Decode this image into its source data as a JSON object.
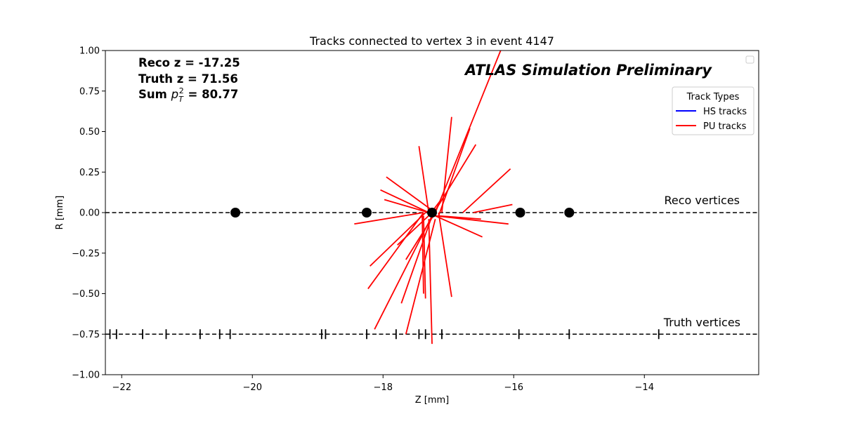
{
  "chart_data": {
    "type": "scatter",
    "title": "Tracks connected to vertex 3 in event 4147",
    "xlabel": "Z [mm]",
    "ylabel": "R [mm]",
    "xlim": [
      -22.25,
      -12.25
    ],
    "ylim": [
      -1.0,
      1.0
    ],
    "xticks": [
      -22,
      -20,
      -18,
      -16,
      -14
    ],
    "xtick_labels": [
      "−22",
      "−20",
      "−18",
      "−16",
      "−14"
    ],
    "yticks": [
      1.0,
      0.75,
      0.5,
      0.25,
      0.0,
      -0.25,
      -0.5,
      -0.75,
      -1.0
    ],
    "ytick_labels": [
      "1.00",
      "0.75",
      "0.50",
      "0.25",
      "0.00",
      "−0.25",
      "−0.50",
      "−0.75",
      "−1.00"
    ],
    "grid": false,
    "info": {
      "reco_z_label": "Reco z = -17.25",
      "truth_z_label": "Truth z = 71.56",
      "sum_pt_prefix": "Sum ",
      "sum_pt_p": "p",
      "sum_pt_sub": "T",
      "sum_pt_sup": "2",
      "sum_pt_suffix": " = 80.77"
    },
    "watermark": "ATLAS Simulation Preliminary",
    "reference_lines": [
      {
        "label": "Reco vertices",
        "r": 0.0,
        "color": "#000000"
      },
      {
        "label": "Truth vertices",
        "r": -0.75,
        "color": "#000000"
      }
    ],
    "reco_vertices": [
      {
        "z": -20.26,
        "r": 0.0
      },
      {
        "z": -18.25,
        "r": 0.0
      },
      {
        "z": -17.25,
        "r": 0.0
      },
      {
        "z": -15.9,
        "r": 0.0
      },
      {
        "z": -15.15,
        "r": 0.0
      }
    ],
    "truth_vertices": [
      {
        "z": -22.18,
        "r": -0.75
      },
      {
        "z": -22.08,
        "r": -0.75
      },
      {
        "z": -21.68,
        "r": -0.75
      },
      {
        "z": -21.32,
        "r": -0.75
      },
      {
        "z": -20.8,
        "r": -0.75
      },
      {
        "z": -20.5,
        "r": -0.75
      },
      {
        "z": -20.34,
        "r": -0.75
      },
      {
        "z": -18.94,
        "r": -0.75
      },
      {
        "z": -18.88,
        "r": -0.75
      },
      {
        "z": -18.25,
        "r": -0.75
      },
      {
        "z": -17.8,
        "r": -0.75
      },
      {
        "z": -17.45,
        "r": -0.75
      },
      {
        "z": -17.35,
        "r": -0.75
      },
      {
        "z": -17.1,
        "r": -0.75
      },
      {
        "z": -15.92,
        "r": -0.75
      },
      {
        "z": -15.15,
        "r": -0.75
      },
      {
        "z": -13.78,
        "r": -0.75
      }
    ],
    "legend": {
      "title": "Track Types",
      "placement": "upper right",
      "entries": [
        {
          "name": "HS tracks",
          "color": "#0000ff"
        },
        {
          "name": "PU tracks",
          "color": "#ff0000"
        }
      ]
    },
    "series": [
      {
        "name": "PU tracks",
        "color": "#ff0000",
        "segments": [
          [
            [
              -17.2,
              0.0
            ],
            [
              -16.2,
              1.0
            ]
          ],
          [
            [
              -17.15,
              -0.02
            ],
            [
              -16.67,
              0.52
            ]
          ],
          [
            [
              -17.1,
              0.0
            ],
            [
              -16.95,
              0.59
            ]
          ],
          [
            [
              -17.3,
              0.0
            ],
            [
              -17.45,
              0.41
            ]
          ],
          [
            [
              -17.25,
              -0.02
            ],
            [
              -16.58,
              0.42
            ]
          ],
          [
            [
              -17.2,
              0.0
            ],
            [
              -17.95,
              0.22
            ]
          ],
          [
            [
              -16.78,
              0.0
            ],
            [
              -16.05,
              0.27
            ]
          ],
          [
            [
              -17.3,
              0.0
            ],
            [
              -18.04,
              0.14
            ]
          ],
          [
            [
              -17.3,
              0.0
            ],
            [
              -17.98,
              0.08
            ]
          ],
          [
            [
              -17.3,
              -0.02
            ],
            [
              -17.13,
              0.07
            ]
          ],
          [
            [
              -16.62,
              0.0
            ],
            [
              -16.02,
              0.05
            ]
          ],
          [
            [
              -17.38,
              0.0
            ],
            [
              -18.44,
              -0.07
            ]
          ],
          [
            [
              -17.15,
              -0.02
            ],
            [
              -16.5,
              -0.04
            ]
          ],
          [
            [
              -17.2,
              -0.02
            ],
            [
              -16.08,
              -0.07
            ]
          ],
          [
            [
              -17.2,
              -0.02
            ],
            [
              -16.48,
              -0.15
            ]
          ],
          [
            [
              -17.25,
              0.0
            ],
            [
              -17.78,
              -0.2
            ]
          ],
          [
            [
              -17.2,
              0.0
            ],
            [
              -17.65,
              -0.29
            ]
          ],
          [
            [
              -17.35,
              0.0
            ],
            [
              -18.2,
              -0.33
            ]
          ],
          [
            [
              -17.38,
              0.0
            ],
            [
              -18.23,
              -0.47
            ]
          ],
          [
            [
              -17.4,
              -0.02
            ],
            [
              -17.38,
              -0.5
            ]
          ],
          [
            [
              -17.38,
              -0.02
            ],
            [
              -17.35,
              -0.53
            ]
          ],
          [
            [
              -17.15,
              0.0
            ],
            [
              -16.95,
              -0.52
            ]
          ],
          [
            [
              -17.25,
              -0.02
            ],
            [
              -17.72,
              -0.56
            ]
          ],
          [
            [
              -17.25,
              -0.02
            ],
            [
              -18.13,
              -0.72
            ]
          ],
          [
            [
              -17.2,
              -0.04
            ],
            [
              -17.65,
              -0.75
            ]
          ],
          [
            [
              -17.3,
              -0.04
            ],
            [
              -17.25,
              -0.81
            ]
          ]
        ]
      }
    ]
  }
}
